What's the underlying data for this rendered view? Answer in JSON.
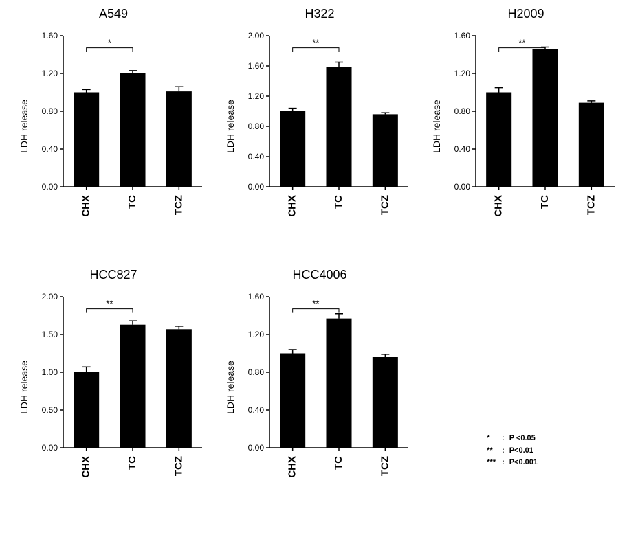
{
  "panels": [
    {
      "id": "a549",
      "title": "A549",
      "ylabel": "LDH release",
      "ylim": [
        0.0,
        1.6
      ],
      "ytick_step": 0.4,
      "categories": [
        "CHX",
        "TC",
        "TCZ"
      ],
      "values": [
        1.0,
        1.2,
        1.01
      ],
      "errors": [
        0.03,
        0.03,
        0.05
      ],
      "sig": {
        "from": 0,
        "to": 1,
        "label": "*"
      },
      "bar_color": "#000000",
      "axis_color": "#000000",
      "tick_fontsize": 12,
      "xlabel_fontsize": 15,
      "title_fontsize": 18,
      "bar_width": 0.55
    },
    {
      "id": "h322",
      "title": "H322",
      "ylabel": "LDH release",
      "ylim": [
        0.0,
        2.0
      ],
      "ytick_step": 0.4,
      "categories": [
        "CHX",
        "TC",
        "TCZ"
      ],
      "values": [
        1.0,
        1.59,
        0.96
      ],
      "errors": [
        0.04,
        0.06,
        0.02
      ],
      "sig": {
        "from": 0,
        "to": 1,
        "label": "**"
      },
      "bar_color": "#000000",
      "axis_color": "#000000",
      "tick_fontsize": 12,
      "xlabel_fontsize": 15,
      "title_fontsize": 18,
      "bar_width": 0.55
    },
    {
      "id": "h2009",
      "title": "H2009",
      "ylabel": "LDH release",
      "ylim": [
        0.0,
        1.6
      ],
      "ytick_step": 0.4,
      "categories": [
        "CHX",
        "TC",
        "TCZ"
      ],
      "values": [
        1.0,
        1.46,
        0.89
      ],
      "errors": [
        0.05,
        0.02,
        0.02
      ],
      "sig": {
        "from": 0,
        "to": 1,
        "label": "**"
      },
      "bar_color": "#000000",
      "axis_color": "#000000",
      "tick_fontsize": 12,
      "xlabel_fontsize": 15,
      "title_fontsize": 18,
      "bar_width": 0.55
    },
    {
      "id": "hcc827",
      "title": "HCC827",
      "ylabel": "LDH release",
      "ylim": [
        0.0,
        2.0
      ],
      "ytick_step": 0.5,
      "categories": [
        "CHX",
        "TC",
        "TCZ"
      ],
      "values": [
        1.0,
        1.63,
        1.57
      ],
      "errors": [
        0.07,
        0.05,
        0.04
      ],
      "sig": {
        "from": 0,
        "to": 1,
        "label": "**"
      },
      "bar_color": "#000000",
      "axis_color": "#000000",
      "tick_fontsize": 12,
      "xlabel_fontsize": 15,
      "title_fontsize": 18,
      "bar_width": 0.55
    },
    {
      "id": "hcc4006",
      "title": "HCC4006",
      "ylabel": "LDH release",
      "ylim": [
        0.0,
        1.6
      ],
      "ytick_step": 0.4,
      "categories": [
        "CHX",
        "TC",
        "TCZ"
      ],
      "values": [
        1.0,
        1.37,
        0.96
      ],
      "errors": [
        0.04,
        0.05,
        0.03
      ],
      "sig": {
        "from": 0,
        "to": 1,
        "label": "**"
      },
      "bar_color": "#000000",
      "axis_color": "#000000",
      "tick_fontsize": 12,
      "xlabel_fontsize": 15,
      "title_fontsize": 18,
      "bar_width": 0.55
    }
  ],
  "legend": {
    "rows": [
      {
        "symbol": "*",
        "text": "P <0.05"
      },
      {
        "symbol": "**",
        "text": "P<0.01"
      },
      {
        "symbol": "***",
        "text": "P<0.001"
      }
    ],
    "fontsize": 11,
    "fontweight": 700
  }
}
